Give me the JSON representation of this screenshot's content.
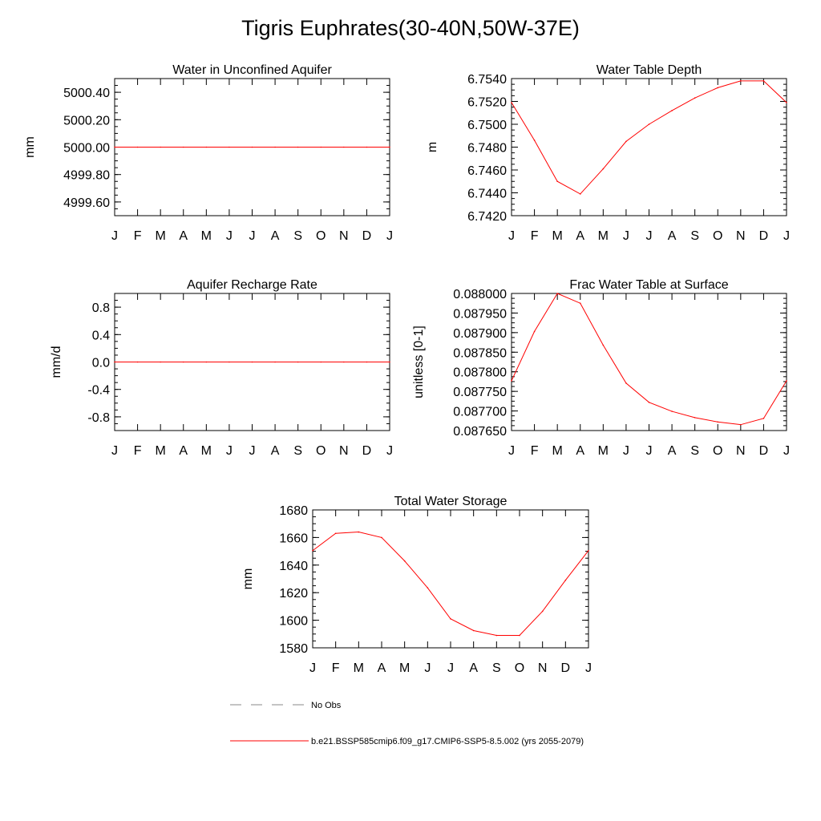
{
  "title": "Tigris Euphrates(30-40N,50W-37E)",
  "months": [
    "J",
    "F",
    "M",
    "A",
    "M",
    "J",
    "J",
    "A",
    "S",
    "O",
    "N",
    "D",
    "J"
  ],
  "line_color": "#ff0000",
  "chart_data": [
    {
      "type": "line",
      "title": "Water in Unconfined Aquifer",
      "ylabel": "mm",
      "ylim": [
        4999.5,
        5000.5
      ],
      "yticks": [
        4999.6,
        4999.8,
        5000.0,
        5000.2,
        5000.4
      ],
      "ytick_labels": [
        "4999.60",
        "4999.80",
        "5000.00",
        "5000.20",
        "5000.40"
      ],
      "yminor": 0.05,
      "values": [
        5000.0,
        5000.0,
        5000.0,
        5000.0,
        5000.0,
        5000.0,
        5000.0,
        5000.0,
        5000.0,
        5000.0,
        5000.0,
        5000.0,
        5000.0
      ]
    },
    {
      "type": "line",
      "title": "Water Table Depth",
      "ylabel": "m",
      "ylim": [
        6.742,
        6.754
      ],
      "yticks": [
        6.742,
        6.744,
        6.746,
        6.748,
        6.75,
        6.752,
        6.754
      ],
      "ytick_labels": [
        "6.7420",
        "6.7440",
        "6.7460",
        "6.7480",
        "6.7500",
        "6.7520",
        "6.7540"
      ],
      "yminor": 0.0005,
      "values": [
        6.7519,
        6.7486,
        6.745,
        6.7439,
        6.7461,
        6.7485,
        6.75,
        6.7512,
        6.7523,
        6.7532,
        6.7538,
        6.7538,
        6.7519
      ]
    },
    {
      "type": "line",
      "title": "Aquifer Recharge Rate",
      "ylabel": "mm/d",
      "ylim": [
        -1.0,
        1.0
      ],
      "yticks": [
        -0.8,
        -0.4,
        0.0,
        0.4,
        0.8
      ],
      "ytick_labels": [
        "-0.8",
        "-0.4",
        "0.0",
        "0.4",
        "0.8"
      ],
      "yminor": 0.1,
      "values": [
        0,
        0,
        0,
        0,
        0,
        0,
        0,
        0,
        0,
        0,
        0,
        0,
        0
      ]
    },
    {
      "type": "line",
      "title": "Frac Water Table at Surface",
      "ylabel": "unitless [0-1]",
      "ylim": [
        0.08765,
        0.088
      ],
      "yticks": [
        0.08765,
        0.0877,
        0.08775,
        0.0878,
        0.08785,
        0.0879,
        0.08795,
        0.088
      ],
      "ytick_labels": [
        "0.087650",
        "0.087700",
        "0.087750",
        "0.087800",
        "0.087850",
        "0.087900",
        "0.087950",
        "0.088000"
      ],
      "yminor": 1.25e-05,
      "values": [
        0.087777,
        0.087903,
        0.088,
        0.087975,
        0.087868,
        0.087771,
        0.087722,
        0.087699,
        0.087683,
        0.087672,
        0.087665,
        0.087681,
        0.087777
      ]
    },
    {
      "type": "line",
      "title": "Total Water Storage",
      "ylabel": "mm",
      "ylim": [
        1580,
        1680
      ],
      "yticks": [
        1580,
        1600,
        1620,
        1640,
        1660,
        1680
      ],
      "ytick_labels": [
        "1580",
        "1600",
        "1620",
        "1640",
        "1660",
        "1680"
      ],
      "yminor": 5,
      "values": [
        1650.5,
        1663,
        1664,
        1660,
        1643,
        1623.5,
        1601,
        1592.5,
        1589,
        1589,
        1606.5,
        1629,
        1650.5
      ]
    }
  ],
  "legend": [
    {
      "label": "No Obs",
      "style": "dashed",
      "color": "#888888"
    },
    {
      "label": "b.e21.BSSP585cmip6.f09_g17.CMIP6-SSP5-8.5.002 (yrs 2055-2079)",
      "style": "solid",
      "color": "#ff0000"
    }
  ]
}
